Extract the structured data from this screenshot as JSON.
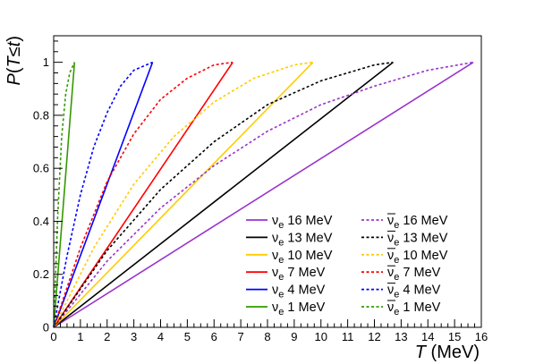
{
  "chart_data": {
    "type": "line",
    "title": "",
    "xlabel": "T (MeV)",
    "ylabel": "P(T≤t)",
    "xlim": [
      0,
      16
    ],
    "ylim": [
      0,
      1.1
    ],
    "x_ticks": [
      "0",
      "1",
      "2",
      "3",
      "4",
      "5",
      "6",
      "7",
      "8",
      "9",
      "10",
      "11",
      "12",
      "13",
      "14",
      "15",
      "16"
    ],
    "y_ticks": [
      "0",
      "0.2",
      "0.4",
      "0.6",
      "0.8",
      "1"
    ],
    "grid": false,
    "legend_position": "bottom-right",
    "series": [
      {
        "name": "ν_e 16 MeV",
        "color": "#9933cc",
        "style": "solid",
        "x": [
          0,
          15.7
        ],
        "y": [
          0,
          1
        ]
      },
      {
        "name": "ν_e 13 MeV",
        "color": "#000000",
        "style": "solid",
        "x": [
          0,
          12.7
        ],
        "y": [
          0,
          1
        ]
      },
      {
        "name": "ν_e 10 MeV",
        "color": "#ffcc00",
        "style": "solid",
        "x": [
          0,
          9.7
        ],
        "y": [
          0,
          1
        ]
      },
      {
        "name": "ν_e 7 MeV",
        "color": "#ff0000",
        "style": "solid",
        "x": [
          0,
          6.7
        ],
        "y": [
          0,
          1
        ]
      },
      {
        "name": "ν_e 4 MeV",
        "color": "#0000ff",
        "style": "solid",
        "x": [
          0,
          3.7
        ],
        "y": [
          0,
          1
        ]
      },
      {
        "name": "ν_e 1 MeV",
        "color": "#339900",
        "style": "solid",
        "x": [
          0,
          0.78
        ],
        "y": [
          0,
          1
        ]
      },
      {
        "name": "ν̄_e 16 MeV",
        "color": "#9933cc",
        "style": "dashed",
        "x": [
          0,
          2,
          4,
          6,
          8,
          10,
          12,
          14,
          15.7
        ],
        "y": [
          0,
          0.25,
          0.45,
          0.61,
          0.74,
          0.84,
          0.91,
          0.97,
          1
        ]
      },
      {
        "name": "ν̄_e 13 MeV",
        "color": "#000000",
        "style": "dashed",
        "x": [
          0,
          2,
          4,
          6,
          8,
          10,
          12,
          12.7
        ],
        "y": [
          0,
          0.29,
          0.52,
          0.7,
          0.84,
          0.93,
          0.99,
          1
        ]
      },
      {
        "name": "ν̄_e 10 MeV",
        "color": "#ffcc00",
        "style": "dashed",
        "x": [
          0,
          1.5,
          3,
          4.5,
          6,
          7.5,
          9,
          9.7
        ],
        "y": [
          0,
          0.3,
          0.54,
          0.72,
          0.85,
          0.94,
          0.99,
          1
        ]
      },
      {
        "name": "ν̄_e 7 MeV",
        "color": "#ff0000",
        "style": "dashed",
        "x": [
          0,
          1,
          2,
          3,
          4,
          5,
          6,
          6.7
        ],
        "y": [
          0,
          0.3,
          0.55,
          0.73,
          0.86,
          0.94,
          0.99,
          1
        ]
      },
      {
        "name": "ν̄_e 4 MeV",
        "color": "#0000ff",
        "style": "dashed",
        "x": [
          0,
          0.5,
          1,
          1.5,
          2,
          2.5,
          3,
          3.7
        ],
        "y": [
          0,
          0.27,
          0.5,
          0.68,
          0.81,
          0.91,
          0.97,
          1
        ]
      },
      {
        "name": "ν̄_e 1 MeV",
        "color": "#339900",
        "style": "dashed",
        "x": [
          0,
          0.15,
          0.3,
          0.45,
          0.6,
          0.78
        ],
        "y": [
          0,
          0.42,
          0.72,
          0.88,
          0.96,
          1
        ]
      }
    ],
    "legend": [
      {
        "label": "ν",
        "sub": "e",
        "energy": " 16 MeV",
        "bar": false,
        "color": "#9933cc",
        "style": "solid"
      },
      {
        "label": "ν",
        "sub": "e",
        "energy": " 16 MeV",
        "bar": true,
        "color": "#9933cc",
        "style": "dashed"
      },
      {
        "label": "ν",
        "sub": "e",
        "energy": " 13 MeV",
        "bar": false,
        "color": "#000000",
        "style": "solid"
      },
      {
        "label": "ν",
        "sub": "e",
        "energy": " 13 MeV",
        "bar": true,
        "color": "#000000",
        "style": "dashed"
      },
      {
        "label": "ν",
        "sub": "e",
        "energy": " 10 MeV",
        "bar": false,
        "color": "#ffcc00",
        "style": "solid"
      },
      {
        "label": "ν",
        "sub": "e",
        "energy": " 10 MeV",
        "bar": true,
        "color": "#ffcc00",
        "style": "dashed"
      },
      {
        "label": "ν",
        "sub": "e",
        "energy": " 7 MeV",
        "bar": false,
        "color": "#ff0000",
        "style": "solid"
      },
      {
        "label": "ν",
        "sub": "e",
        "energy": " 7 MeV",
        "bar": true,
        "color": "#ff0000",
        "style": "dashed"
      },
      {
        "label": "ν",
        "sub": "e",
        "energy": " 4 MeV",
        "bar": false,
        "color": "#0000ff",
        "style": "solid"
      },
      {
        "label": "ν",
        "sub": "e",
        "energy": " 4 MeV",
        "bar": true,
        "color": "#0000ff",
        "style": "dashed"
      },
      {
        "label": "ν",
        "sub": "e",
        "energy": " 1 MeV",
        "bar": false,
        "color": "#339900",
        "style": "solid"
      },
      {
        "label": "ν",
        "sub": "e",
        "energy": " 1 MeV",
        "bar": true,
        "color": "#339900",
        "style": "dashed"
      }
    ]
  }
}
